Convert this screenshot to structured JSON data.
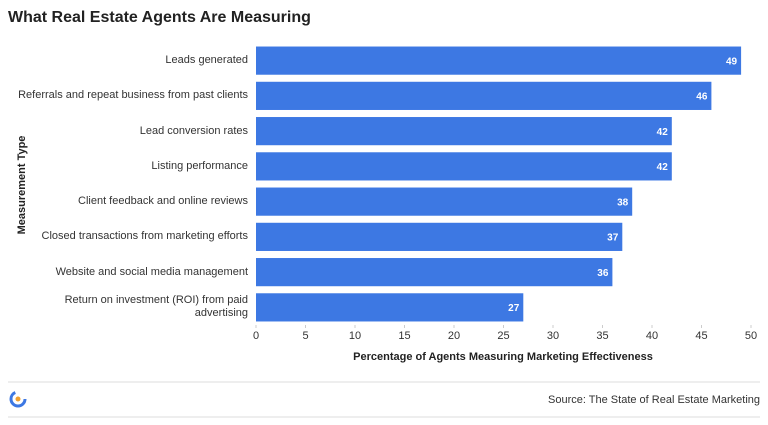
{
  "chart_data": {
    "type": "bar",
    "orientation": "horizontal",
    "title": "What Real Estate Agents Are Measuring",
    "x_label": "Percentage of Agents Measuring Marketing Effectiveness",
    "y_label": "Measurement Type",
    "categories": [
      "Leads generated",
      "Referrals and repeat business from past clients",
      "Lead conversion rates",
      "Listing performance",
      "Client feedback and online reviews",
      "Closed transactions from marketing efforts",
      "Website and social media management",
      "Return on investment (ROI) from paid advertising"
    ],
    "values": [
      49,
      46,
      42,
      42,
      38,
      37,
      36,
      27
    ],
    "color": "#3d78e3",
    "xlim": [
      0,
      50
    ],
    "xticks": [
      0,
      5,
      10,
      15,
      20,
      25,
      30,
      35,
      40,
      45,
      50
    ],
    "grid": false,
    "source": "Source: The State of Real Estate Marketing"
  }
}
